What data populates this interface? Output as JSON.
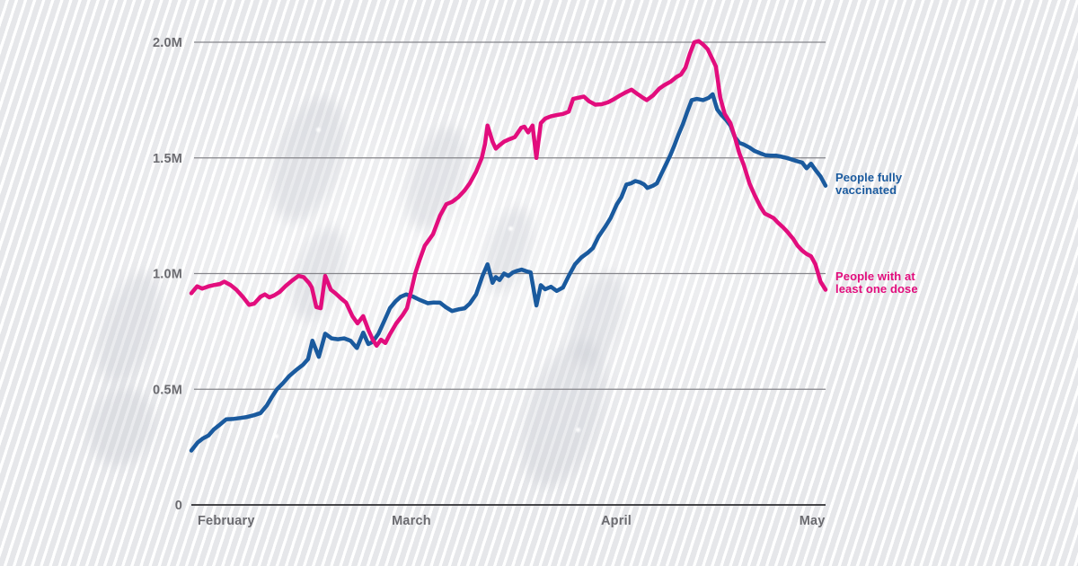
{
  "chart_data": {
    "type": "line",
    "title": "",
    "unit": "people (millions)",
    "ylim": [
      0,
      2.0
    ],
    "grid": "horizontal",
    "legend_position": "right-of-line-ends",
    "colors": {
      "grid": "#85858a",
      "axis": "#2d2d30",
      "tick_label": "#6b6b70"
    },
    "y_ticks": [
      {
        "label": "2.0M",
        "value": 2.0
      },
      {
        "label": "1.5M",
        "value": 1.5
      },
      {
        "label": "1.0M",
        "value": 1.0
      },
      {
        "label": "0.5M",
        "value": 0.5
      },
      {
        "label": "0",
        "value": 0.0
      }
    ],
    "x_ticks": [
      {
        "label": "February",
        "pos_pct": 5.5
      },
      {
        "label": "March",
        "pos_pct": 34.7
      },
      {
        "label": "April",
        "pos_pct": 67.0
      },
      {
        "label": "May",
        "pos_pct": 97.9
      }
    ],
    "series": [
      {
        "name": "People fully vaccinated",
        "name_lines": [
          "People fully",
          "vaccinated"
        ],
        "color": "#1a5a9e",
        "points": [
          [
            0,
            0.235
          ],
          [
            1,
            0.27
          ],
          [
            1.8,
            0.287
          ],
          [
            2.7,
            0.3
          ],
          [
            3.5,
            0.325
          ],
          [
            4.5,
            0.347
          ],
          [
            5.5,
            0.37
          ],
          [
            6.7,
            0.372
          ],
          [
            7.8,
            0.376
          ],
          [
            8.8,
            0.38
          ],
          [
            9.8,
            0.387
          ],
          [
            10.9,
            0.397
          ],
          [
            11.9,
            0.43
          ],
          [
            12.7,
            0.467
          ],
          [
            13.5,
            0.5
          ],
          [
            14.4,
            0.525
          ],
          [
            15.4,
            0.556
          ],
          [
            16.6,
            0.585
          ],
          [
            17.6,
            0.606
          ],
          [
            18.4,
            0.63
          ],
          [
            19.1,
            0.71
          ],
          [
            20.1,
            0.64
          ],
          [
            21.1,
            0.74
          ],
          [
            22.1,
            0.72
          ],
          [
            23.1,
            0.716
          ],
          [
            24.1,
            0.72
          ],
          [
            25.1,
            0.71
          ],
          [
            26.1,
            0.678
          ],
          [
            27.1,
            0.745
          ],
          [
            27.9,
            0.695
          ],
          [
            28.6,
            0.705
          ],
          [
            29.5,
            0.74
          ],
          [
            30.5,
            0.8
          ],
          [
            31.3,
            0.85
          ],
          [
            32.2,
            0.88
          ],
          [
            33,
            0.9
          ],
          [
            33.9,
            0.91
          ],
          [
            35,
            0.9
          ],
          [
            36.1,
            0.885
          ],
          [
            37.3,
            0.872
          ],
          [
            38.2,
            0.875
          ],
          [
            39.2,
            0.874
          ],
          [
            40.1,
            0.855
          ],
          [
            41.1,
            0.838
          ],
          [
            42.1,
            0.845
          ],
          [
            43.1,
            0.85
          ],
          [
            43.9,
            0.87
          ],
          [
            44.9,
            0.91
          ],
          [
            45.9,
            0.99
          ],
          [
            46.7,
            1.04
          ],
          [
            47.5,
            0.96
          ],
          [
            48,
            0.985
          ],
          [
            48.6,
            0.972
          ],
          [
            49.3,
            1.0
          ],
          [
            50,
            0.99
          ],
          [
            50.7,
            1.005
          ],
          [
            51.4,
            1.012
          ],
          [
            52.1,
            1.017
          ],
          [
            52.8,
            1.01
          ],
          [
            53.5,
            1.005
          ],
          [
            54.4,
            0.862
          ],
          [
            55.1,
            0.95
          ],
          [
            55.8,
            0.932
          ],
          [
            56.7,
            0.943
          ],
          [
            57.6,
            0.925
          ],
          [
            58.6,
            0.94
          ],
          [
            59.5,
            0.99
          ],
          [
            60.5,
            1.04
          ],
          [
            61.5,
            1.07
          ],
          [
            62.5,
            1.09
          ],
          [
            63.3,
            1.11
          ],
          [
            64.2,
            1.16
          ],
          [
            65.2,
            1.2
          ],
          [
            66.1,
            1.24
          ],
          [
            67.1,
            1.3
          ],
          [
            67.8,
            1.33
          ],
          [
            68.6,
            1.385
          ],
          [
            69.3,
            1.39
          ],
          [
            70,
            1.4
          ],
          [
            70.7,
            1.395
          ],
          [
            71.4,
            1.385
          ],
          [
            71.9,
            1.37
          ],
          [
            72.8,
            1.38
          ],
          [
            73.4,
            1.39
          ],
          [
            74.1,
            1.43
          ],
          [
            74.8,
            1.47
          ],
          [
            75.5,
            1.51
          ],
          [
            76.1,
            1.55
          ],
          [
            76.8,
            1.6
          ],
          [
            77.5,
            1.645
          ],
          [
            78.2,
            1.7
          ],
          [
            78.9,
            1.75
          ],
          [
            79.7,
            1.755
          ],
          [
            80.7,
            1.75
          ],
          [
            81.6,
            1.76
          ],
          [
            82.2,
            1.775
          ],
          [
            82.9,
            1.71
          ],
          [
            83.6,
            1.685
          ],
          [
            84.3,
            1.665
          ],
          [
            85,
            1.64
          ],
          [
            85.7,
            1.59
          ],
          [
            86.4,
            1.565
          ],
          [
            87.1,
            1.558
          ],
          [
            88,
            1.545
          ],
          [
            88.8,
            1.53
          ],
          [
            89.7,
            1.52
          ],
          [
            90.5,
            1.512
          ],
          [
            91.4,
            1.51
          ],
          [
            92.2,
            1.51
          ],
          [
            93.1,
            1.505
          ],
          [
            93.9,
            1.5
          ],
          [
            94.8,
            1.492
          ],
          [
            95.6,
            1.485
          ],
          [
            96.3,
            1.48
          ],
          [
            97,
            1.455
          ],
          [
            97.7,
            1.475
          ],
          [
            98.4,
            1.448
          ],
          [
            99.2,
            1.42
          ],
          [
            100,
            1.38
          ]
        ]
      },
      {
        "name": "People with at least one dose",
        "name_lines": [
          "People with at",
          "least one dose"
        ],
        "color": "#e20d7d",
        "points": [
          [
            0,
            0.915
          ],
          [
            0.9,
            0.945
          ],
          [
            1.7,
            0.935
          ],
          [
            2.7,
            0.945
          ],
          [
            3.5,
            0.95
          ],
          [
            4.5,
            0.955
          ],
          [
            5.2,
            0.965
          ],
          [
            6.2,
            0.95
          ],
          [
            7.1,
            0.93
          ],
          [
            8.1,
            0.9
          ],
          [
            9.1,
            0.865
          ],
          [
            9.9,
            0.87
          ],
          [
            10.9,
            0.9
          ],
          [
            11.6,
            0.91
          ],
          [
            12.3,
            0.897
          ],
          [
            13,
            0.905
          ],
          [
            13.9,
            0.92
          ],
          [
            14.9,
            0.947
          ],
          [
            15.9,
            0.97
          ],
          [
            16.9,
            0.99
          ],
          [
            17.7,
            0.985
          ],
          [
            18.6,
            0.958
          ],
          [
            19,
            0.94
          ],
          [
            19.7,
            0.855
          ],
          [
            20.4,
            0.85
          ],
          [
            21.1,
            0.99
          ],
          [
            22,
            0.93
          ],
          [
            22.7,
            0.915
          ],
          [
            23.7,
            0.89
          ],
          [
            24.4,
            0.874
          ],
          [
            25.4,
            0.816
          ],
          [
            26.2,
            0.785
          ],
          [
            27.1,
            0.816
          ],
          [
            27.9,
            0.757
          ],
          [
            28.6,
            0.714
          ],
          [
            29.2,
            0.688
          ],
          [
            29.9,
            0.714
          ],
          [
            30.6,
            0.7
          ],
          [
            31.3,
            0.738
          ],
          [
            32.3,
            0.784
          ],
          [
            33.3,
            0.82
          ],
          [
            34,
            0.85
          ],
          [
            34.7,
            0.93
          ],
          [
            35.3,
            1.0
          ],
          [
            36,
            1.06
          ],
          [
            36.8,
            1.12
          ],
          [
            38.1,
            1.17
          ],
          [
            39.2,
            1.25
          ],
          [
            40.2,
            1.3
          ],
          [
            41.1,
            1.31
          ],
          [
            42.1,
            1.33
          ],
          [
            43.1,
            1.36
          ],
          [
            43.9,
            1.39
          ],
          [
            44.9,
            1.44
          ],
          [
            45.8,
            1.5
          ],
          [
            46.3,
            1.56
          ],
          [
            46.7,
            1.64
          ],
          [
            47.5,
            1.57
          ],
          [
            48,
            1.54
          ],
          [
            48.6,
            1.555
          ],
          [
            49.3,
            1.57
          ],
          [
            50.1,
            1.58
          ],
          [
            51,
            1.59
          ],
          [
            52,
            1.63
          ],
          [
            52.5,
            1.635
          ],
          [
            53.1,
            1.61
          ],
          [
            53.8,
            1.64
          ],
          [
            54.4,
            1.5
          ],
          [
            55.1,
            1.65
          ],
          [
            55.8,
            1.67
          ],
          [
            56.7,
            1.68
          ],
          [
            57.6,
            1.685
          ],
          [
            58.6,
            1.69
          ],
          [
            59.5,
            1.7
          ],
          [
            60.2,
            1.755
          ],
          [
            61,
            1.76
          ],
          [
            61.9,
            1.765
          ],
          [
            62.7,
            1.745
          ],
          [
            63.7,
            1.73
          ],
          [
            64.7,
            1.732
          ],
          [
            65.7,
            1.74
          ],
          [
            66.7,
            1.755
          ],
          [
            67.6,
            1.77
          ],
          [
            68.6,
            1.785
          ],
          [
            69.4,
            1.795
          ],
          [
            70.4,
            1.775
          ],
          [
            71.2,
            1.76
          ],
          [
            71.8,
            1.75
          ],
          [
            72.8,
            1.77
          ],
          [
            73.8,
            1.8
          ],
          [
            74.6,
            1.815
          ],
          [
            75.6,
            1.83
          ],
          [
            76.5,
            1.85
          ],
          [
            77.2,
            1.86
          ],
          [
            77.9,
            1.89
          ],
          [
            78.6,
            1.95
          ],
          [
            79.3,
            2.0
          ],
          [
            80,
            2.005
          ],
          [
            80.7,
            1.99
          ],
          [
            81.4,
            1.97
          ],
          [
            82.2,
            1.925
          ],
          [
            82.7,
            1.895
          ],
          [
            83.4,
            1.76
          ],
          [
            84.1,
            1.69
          ],
          [
            85,
            1.65
          ],
          [
            85.7,
            1.59
          ],
          [
            86.4,
            1.52
          ],
          [
            87.1,
            1.47
          ],
          [
            88,
            1.39
          ],
          [
            88.8,
            1.34
          ],
          [
            89.7,
            1.29
          ],
          [
            90.4,
            1.26
          ],
          [
            91.1,
            1.25
          ],
          [
            91.8,
            1.24
          ],
          [
            92.5,
            1.22
          ],
          [
            93.3,
            1.2
          ],
          [
            94,
            1.18
          ],
          [
            94.9,
            1.15
          ],
          [
            95.6,
            1.12
          ],
          [
            96.3,
            1.1
          ],
          [
            97,
            1.085
          ],
          [
            97.7,
            1.075
          ],
          [
            98.4,
            1.04
          ],
          [
            99.2,
            0.965
          ],
          [
            100,
            0.93
          ]
        ]
      }
    ]
  }
}
